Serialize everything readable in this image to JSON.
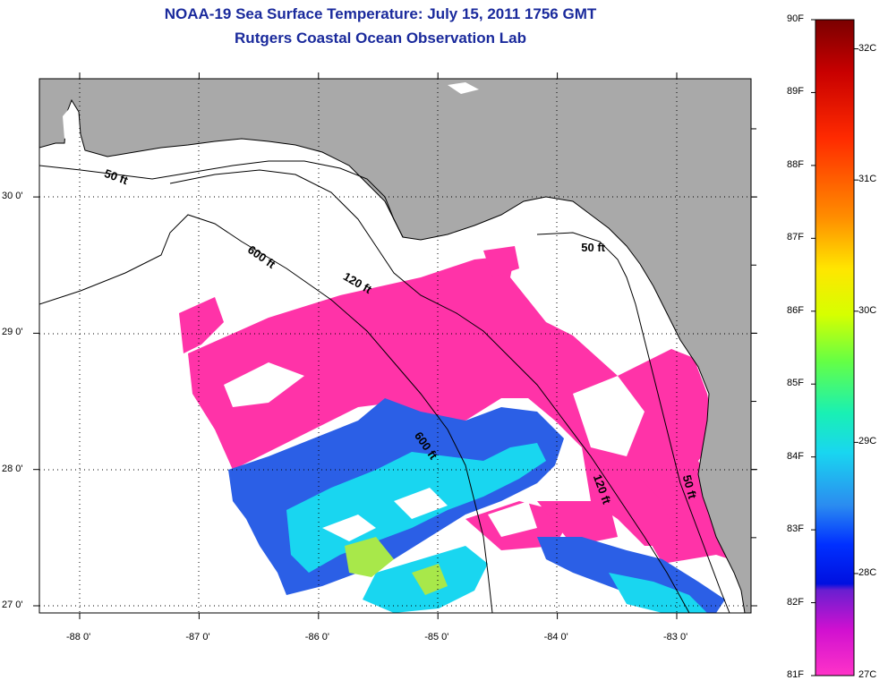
{
  "title": "NOAA-19 Sea Surface Temperature:  July 15, 2011 1756 GMT",
  "subtitle": "Rutgers Coastal Ocean Observation Lab",
  "lon_ticks": [
    {
      "label": "-88 0'",
      "v": -88
    },
    {
      "label": "-87 0'",
      "v": -87
    },
    {
      "label": "-86 0'",
      "v": -86
    },
    {
      "label": "-85 0'",
      "v": -85
    },
    {
      "label": "-84 0'",
      "v": -84
    },
    {
      "label": "-83 0'",
      "v": -83
    }
  ],
  "lat_ticks": [
    {
      "label": "30 0'",
      "v": 30
    },
    {
      "label": "29 0'",
      "v": 29
    },
    {
      "label": "28 0'",
      "v": 28
    },
    {
      "label": "27 0'",
      "v": 27
    }
  ],
  "contours": [
    {
      "label": "50 ft",
      "lon": -87.8,
      "lat": 30.15
    },
    {
      "label": "600 ft",
      "lon": -86.6,
      "lat": 29.6
    },
    {
      "label": "120 ft",
      "lon": -85.8,
      "lat": 29.4
    },
    {
      "label": "50 ft",
      "lon": -83.8,
      "lat": 29.6
    },
    {
      "label": "600 ft",
      "lon": -85.2,
      "lat": 28.25
    },
    {
      "label": "120 ft",
      "lon": -83.7,
      "lat": 27.95
    },
    {
      "label": "50 ft",
      "lon": -82.95,
      "lat": 27.95
    }
  ],
  "colorbar": {
    "f_labels": [
      "90F",
      "89F",
      "88F",
      "87F",
      "86F",
      "85F",
      "84F",
      "83F",
      "82F",
      "81F"
    ],
    "f_range": [
      81,
      90
    ],
    "c_labels": [
      {
        "label": "32C",
        "v": 32
      },
      {
        "label": "31C",
        "v": 31
      },
      {
        "label": "30C",
        "v": 30
      },
      {
        "label": "29C",
        "v": 29
      },
      {
        "label": "28C",
        "v": 28
      },
      {
        "label": "27C",
        "v": 27
      }
    ]
  },
  "colors": {
    "land": "#a9a9a9",
    "title": "#1a2a9c",
    "sst_warm": "#ff33a8",
    "sst_cool_blue": "#2b5fe6",
    "sst_cyan": "#19d6f0",
    "sst_green": "#a8e84a"
  }
}
